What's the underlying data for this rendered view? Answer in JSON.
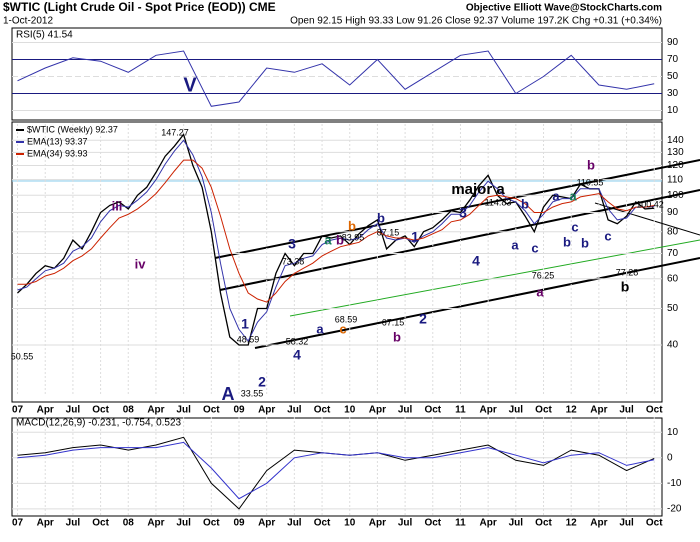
{
  "header": {
    "symbol": "$WTIC (Light Crude Oil - Spot Price (EOD)) CME",
    "date": "1-Oct-2012",
    "quote": "Open 92.15 High 93.33 Low 91.26 Close 92.37 Volume 197.2K Chg +0.31 (+0.34%)",
    "credit": "Objective Elliott Wave@StockCharts.com"
  },
  "chart_data": [
    {
      "type": "line",
      "label": "RSI(5) 41.54",
      "x": [
        2007,
        2007.25,
        2007.5,
        2007.75,
        2008,
        2008.25,
        2008.5,
        2008.75,
        2009,
        2009.25,
        2009.5,
        2009.75,
        2010,
        2010.25,
        2010.5,
        2010.75,
        2011,
        2011.25,
        2011.5,
        2011.75,
        2012,
        2012.25,
        2012.5,
        2012.75
      ],
      "series": [
        {
          "name": "RSI(5)",
          "color": "#3333aa",
          "values": [
            45,
            60,
            72,
            68,
            55,
            75,
            80,
            15,
            20,
            60,
            55,
            65,
            40,
            70,
            35,
            55,
            75,
            80,
            30,
            50,
            75,
            40,
            35,
            41.54
          ]
        }
      ],
      "xlim": [
        2006.95,
        2012.82
      ],
      "ylim": [
        0,
        100
      ],
      "yticks": [
        90,
        70,
        50,
        30,
        10
      ]
    },
    {
      "type": "line",
      "log_scale": true,
      "grid": true,
      "x": [
        2007,
        2007.0833,
        2007.1667,
        2007.25,
        2007.3333,
        2007.4167,
        2007.5,
        2007.5833,
        2007.6667,
        2007.75,
        2007.8333,
        2007.9167,
        2008,
        2008.0833,
        2008.1667,
        2008.25,
        2008.3333,
        2008.4167,
        2008.5,
        2008.5833,
        2008.6667,
        2008.75,
        2008.8333,
        2008.9167,
        2009,
        2009.0833,
        2009.1667,
        2009.25,
        2009.3333,
        2009.4167,
        2009.5,
        2009.5833,
        2009.6667,
        2009.75,
        2009.8333,
        2009.9167,
        2010,
        2010.0833,
        2010.1667,
        2010.25,
        2010.3333,
        2010.4167,
        2010.5,
        2010.5833,
        2010.6667,
        2010.75,
        2010.8333,
        2010.9167,
        2011,
        2011.0833,
        2011.1667,
        2011.25,
        2011.3333,
        2011.4167,
        2011.5,
        2011.5833,
        2011.6667,
        2011.75,
        2011.8333,
        2011.9167,
        2012,
        2012.0833,
        2012.1667,
        2012.25,
        2012.3333,
        2012.4167,
        2012.5,
        2012.5833,
        2012.6667,
        2012.75
      ],
      "series": [
        {
          "name": "$WTIC (Weekly) 92.37",
          "color": "#000000",
          "values": [
            55,
            58,
            62,
            65,
            64,
            68,
            76,
            72,
            80,
            90,
            94,
            96,
            92,
            100,
            105,
            115,
            127,
            135,
            145,
            120,
            105,
            80,
            55,
            42,
            40,
            40,
            50,
            50,
            62,
            70,
            65,
            70,
            70,
            78,
            77,
            78,
            74,
            79,
            83,
            86,
            72,
            76,
            78,
            73,
            80,
            82,
            86,
            91,
            90,
            97,
            106,
            113,
            100,
            95,
            96,
            88,
            80,
            93,
            100,
            99,
            98,
            107,
            104,
            104,
            86,
            84,
            88,
            96,
            92,
            92.37
          ]
        },
        {
          "name": "EMA(13) 93.37",
          "color": "#3333aa",
          "values": [
            56,
            57,
            60,
            63,
            64,
            66,
            71,
            73,
            77,
            85,
            91,
            94,
            93,
            97,
            102,
            110,
            121,
            131,
            140,
            128,
            112,
            90,
            66,
            50,
            44,
            41,
            46,
            49,
            57,
            65,
            66,
            68,
            69,
            74,
            76,
            77,
            76,
            77,
            81,
            84,
            77,
            76,
            77,
            75,
            78,
            80,
            84,
            89,
            89,
            94,
            102,
            109,
            104,
            98,
            96,
            91,
            84,
            89,
            96,
            98,
            98,
            104,
            104,
            104,
            92,
            86,
            87,
            93,
            93,
            93.37
          ]
        },
        {
          "name": "EMA(34) 93.93",
          "color": "#cc2200",
          "values": [
            58,
            58,
            59,
            61,
            62,
            64,
            67,
            69,
            72,
            77,
            82,
            87,
            89,
            92,
            96,
            101,
            108,
            116,
            124,
            124,
            118,
            105,
            88,
            72,
            62,
            55,
            53,
            52,
            55,
            59,
            62,
            64,
            66,
            69,
            71,
            73,
            74,
            75,
            78,
            80,
            78,
            77,
            77,
            76,
            77,
            79,
            81,
            85,
            86,
            89,
            94,
            99,
            100,
            99,
            98,
            95,
            90,
            90,
            93,
            95,
            96,
            99,
            100,
            101,
            96,
            92,
            91,
            93,
            93,
            93.93
          ]
        }
      ],
      "xlim": [
        2006.95,
        2012.82
      ],
      "ylim": [
        30,
        150
      ],
      "yticks": [
        140,
        130,
        120,
        110,
        100,
        90,
        80,
        70,
        60,
        50,
        40
      ],
      "xticks": [
        {
          "value": 2007,
          "label": "07"
        },
        {
          "value": 2007.25,
          "label": "Apr"
        },
        {
          "value": 2007.5,
          "label": "Jul"
        },
        {
          "value": 2007.75,
          "label": "Oct"
        },
        {
          "value": 2008,
          "label": "08"
        },
        {
          "value": 2008.25,
          "label": "Apr"
        },
        {
          "value": 2008.5,
          "label": "Jul"
        },
        {
          "value": 2008.75,
          "label": "Oct"
        },
        {
          "value": 2009,
          "label": "09"
        },
        {
          "value": 2009.25,
          "label": "Apr"
        },
        {
          "value": 2009.5,
          "label": "Jul"
        },
        {
          "value": 2009.75,
          "label": "Oct"
        },
        {
          "value": 2010,
          "label": "10"
        },
        {
          "value": 2010.25,
          "label": "Apr"
        },
        {
          "value": 2010.5,
          "label": "Jul"
        },
        {
          "value": 2010.75,
          "label": "Oct"
        },
        {
          "value": 2011,
          "label": "11"
        },
        {
          "value": 2011.25,
          "label": "Apr"
        },
        {
          "value": 2011.5,
          "label": "Jul"
        },
        {
          "value": 2011.75,
          "label": "Oct"
        },
        {
          "value": 2012,
          "label": "12"
        },
        {
          "value": 2012.25,
          "label": "Apr"
        },
        {
          "value": 2012.5,
          "label": "Jul"
        },
        {
          "value": 2012.75,
          "label": "Oct"
        }
      ],
      "annotations": [
        {
          "text": "V",
          "color": "#1a1a80"
        },
        {
          "text": "iii",
          "color": "#660066"
        },
        {
          "text": "iv",
          "color": "#660066"
        },
        {
          "text": "147.27",
          "color": "#000000"
        },
        {
          "text": "50.55",
          "color": "#000000"
        },
        {
          "text": "A",
          "color": "#1a1a80"
        },
        {
          "text": "1",
          "color": "#1a1a80"
        },
        {
          "text": "48.59",
          "color": "#000000"
        },
        {
          "text": "2",
          "color": "#1a1a80"
        },
        {
          "text": "33.55",
          "color": "#000000"
        },
        {
          "text": "3",
          "color": "#1a1a80"
        },
        {
          "text": "73.38",
          "color": "#000000"
        },
        {
          "text": "4",
          "color": "#1a1a80"
        },
        {
          "text": "58.32",
          "color": "#000000"
        },
        {
          "text": "a",
          "color": "#1a1a80"
        },
        {
          "text": "a",
          "color": "#117755"
        },
        {
          "text": "b",
          "color": "#660066"
        },
        {
          "text": "c",
          "color": "#dd6600"
        },
        {
          "text": "b",
          "color": "#dd6600"
        },
        {
          "text": "83.95",
          "color": "#000000"
        },
        {
          "text": "68.59",
          "color": "#000000"
        },
        {
          "text": "b",
          "color": "#1a1a80"
        },
        {
          "text": "87.15",
          "color": "#000000"
        },
        {
          "text": "67.15",
          "color": "#000000"
        },
        {
          "text": "b",
          "color": "#660066"
        },
        {
          "text": "1",
          "color": "#1a1a80"
        },
        {
          "text": "2",
          "color": "#1a1a80"
        },
        {
          "text": "3",
          "color": "#1a1a80"
        },
        {
          "text": "4",
          "color": "#1a1a80"
        },
        {
          "text": "major a",
          "color": "#000000"
        },
        {
          "text": "114.83",
          "color": "#000000"
        },
        {
          "text": "b",
          "color": "#1a1a80"
        },
        {
          "text": "a",
          "color": "#1a1a80"
        },
        {
          "text": "c",
          "color": "#1a1a80"
        },
        {
          "text": "76.25",
          "color": "#000000"
        },
        {
          "text": "a",
          "color": "#660066"
        },
        {
          "text": "b",
          "color": "#660066"
        },
        {
          "text": "110.55",
          "color": "#000000"
        },
        {
          "text": "a",
          "color": "#1a1a80"
        },
        {
          "text": "a",
          "color": "#117755"
        },
        {
          "text": "c",
          "color": "#1a1a80"
        },
        {
          "text": "b",
          "color": "#1a1a80"
        },
        {
          "text": "b",
          "color": "#1a1a80"
        },
        {
          "text": "c",
          "color": "#1a1a80"
        },
        {
          "text": "100.42",
          "color": "#000000"
        },
        {
          "text": "77.28",
          "color": "#000000"
        },
        {
          "text": "b",
          "color": "#000000"
        }
      ]
    },
    {
      "type": "line",
      "label": "MACD(12,26,9) -0.231, -0.754, 0.523",
      "x": [
        2007,
        2007.25,
        2007.5,
        2007.75,
        2008,
        2008.25,
        2008.5,
        2008.75,
        2009,
        2009.25,
        2009.5,
        2009.75,
        2010,
        2010.25,
        2010.5,
        2010.75,
        2011,
        2011.25,
        2011.5,
        2011.75,
        2012,
        2012.25,
        2012.5,
        2012.75
      ],
      "series": [
        {
          "name": "MACD",
          "color": "#000000",
          "values": [
            1,
            2,
            4,
            5,
            3,
            5,
            8,
            -10,
            -20,
            -5,
            3,
            2,
            1,
            2,
            -1,
            1,
            3,
            5,
            -1,
            -3,
            3,
            1,
            -5,
            -0.231
          ]
        },
        {
          "name": "Signal",
          "color": "#3333cc",
          "values": [
            0,
            1,
            3,
            4,
            4,
            4,
            6,
            -4,
            -16,
            -10,
            0,
            2,
            1,
            2,
            0,
            0,
            2,
            4,
            1,
            -2,
            1,
            2,
            -3,
            -0.754
          ]
        }
      ],
      "xlim": [
        2006.95,
        2012.82
      ],
      "ylim": [
        -22,
        14
      ],
      "yticks": [
        10,
        0,
        -10,
        -20
      ]
    }
  ]
}
